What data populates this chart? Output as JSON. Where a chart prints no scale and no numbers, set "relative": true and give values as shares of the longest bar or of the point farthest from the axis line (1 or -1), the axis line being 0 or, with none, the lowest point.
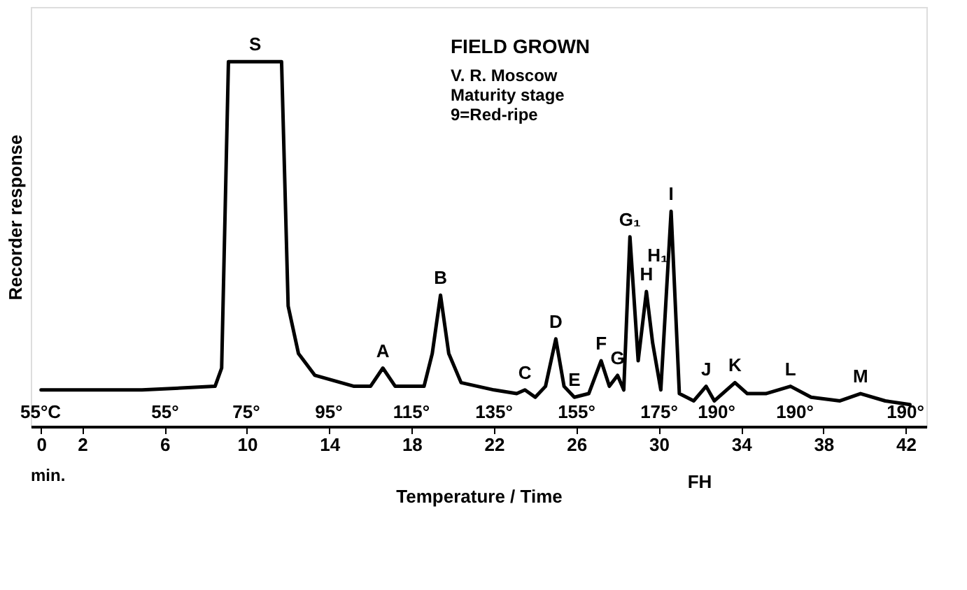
{
  "chart_data": {
    "type": "line",
    "relative": true,
    "color": "#000000",
    "xlabel": "Temperature / Time",
    "ylabel": "Recorder response",
    "xlim": [
      -0.5,
      43
    ],
    "xticks": [
      0,
      2,
      6,
      10,
      14,
      18,
      22,
      26,
      30,
      34,
      38,
      42
    ],
    "x": [
      0,
      4.9,
      8.45,
      8.77,
      9.1,
      11.68,
      12.0,
      12.5,
      13.3,
      15.2,
      16.0,
      16.6,
      17.2,
      18.6,
      19.0,
      19.4,
      19.8,
      20.4,
      22.0,
      23.1,
      23.5,
      24.0,
      24.5,
      25.0,
      25.4,
      25.9,
      26.6,
      27.2,
      27.6,
      28.0,
      28.3,
      28.6,
      29.0,
      29.4,
      29.7,
      30.1,
      30.6,
      31.0,
      31.7,
      32.3,
      32.7,
      33.7,
      34.3,
      35.2,
      36.4,
      37.4,
      38.8,
      39.8,
      41.0,
      42.2
    ],
    "values": [
      0.1,
      0.1,
      0.11,
      0.16,
      1,
      1,
      0.33,
      0.2,
      0.14,
      0.11,
      0.11,
      0.16,
      0.11,
      0.11,
      0.2,
      0.36,
      0.2,
      0.12,
      0.1,
      0.09,
      0.1,
      0.08,
      0.11,
      0.24,
      0.11,
      0.08,
      0.09,
      0.18,
      0.11,
      0.14,
      0.1,
      0.52,
      0.18,
      0.37,
      0.23,
      0.1,
      0.59,
      0.09,
      0.07,
      0.11,
      0.07,
      0.12,
      0.09,
      0.09,
      0.11,
      0.08,
      0.07,
      0.09,
      0.07,
      0.06
    ],
    "annotations": [
      "FIELD GROWN",
      "V. R. Moscow",
      "Maturity stage",
      "9=Red-ripe",
      "min.",
      "FH",
      "55°C",
      "55°",
      "75°",
      "95°",
      "115°",
      "135°",
      "155°",
      "175°",
      "190°",
      "190°",
      "190°",
      "H₁",
      {
        "text": "S",
        "x": 10.4,
        "y": 1
      },
      {
        "text": "A",
        "x": 16.6,
        "y": 0.16
      },
      {
        "text": "B",
        "x": 19.4,
        "y": 0.36
      },
      {
        "text": "C",
        "x": 23.5,
        "y": 0.1
      },
      {
        "text": "D",
        "x": 25.0,
        "y": 0.24
      },
      {
        "text": "E",
        "x": 25.9,
        "y": 0.08
      },
      {
        "text": "F",
        "x": 27.2,
        "y": 0.18
      },
      {
        "text": "G",
        "x": 28.0,
        "y": 0.14
      },
      {
        "text": "G₁",
        "x": 28.6,
        "y": 0.52
      },
      {
        "text": "H",
        "x": 29.4,
        "y": 0.37
      },
      {
        "text": "I",
        "x": 30.6,
        "y": 0.59
      },
      {
        "text": "J",
        "x": 32.3,
        "y": 0.11
      },
      {
        "text": "K",
        "x": 33.7,
        "y": 0.12
      },
      {
        "text": "L",
        "x": 36.4,
        "y": 0.11
      },
      {
        "text": "M",
        "x": 39.8,
        "y": 0.09
      }
    ]
  }
}
